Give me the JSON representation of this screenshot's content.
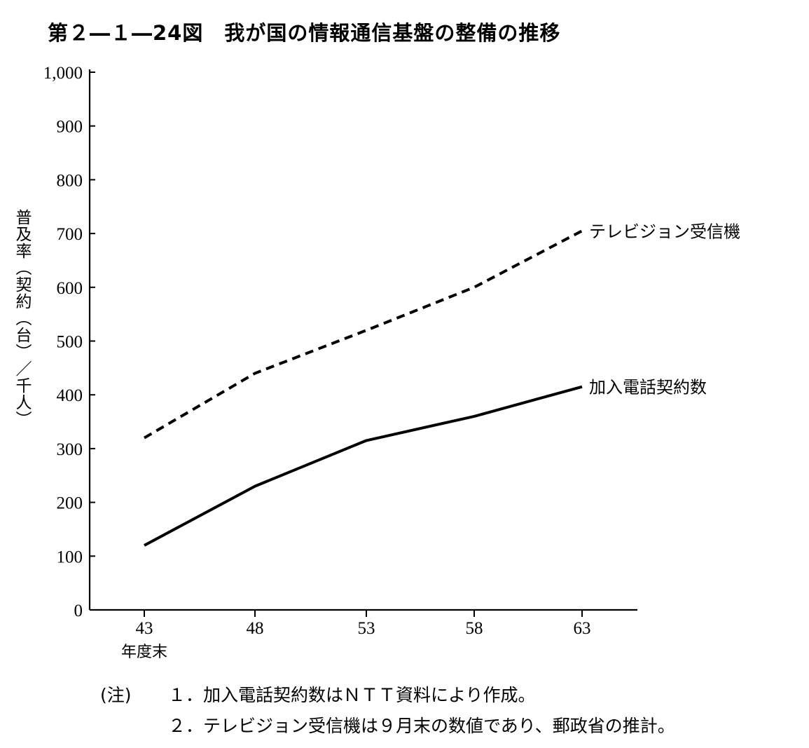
{
  "figure": {
    "title": "第２―１―24図　我が国の情報通信基盤の整備の推移"
  },
  "chart_data": {
    "type": "line",
    "title": "第２―１―24図　我が国の情報通信基盤の整備の推移",
    "ylabel": "普及率（契約（台）／千人）",
    "xlabel": "年度末",
    "categories": [
      "43",
      "48",
      "53",
      "58",
      "63"
    ],
    "yticks": [
      "0",
      "100",
      "200",
      "300",
      "400",
      "500",
      "600",
      "700",
      "800",
      "900",
      "1,000"
    ],
    "ylim": [
      0,
      1000
    ],
    "grid": false,
    "series": [
      {
        "name": "テレビジョン受信機",
        "values": [
          320,
          440,
          520,
          600,
          705
        ],
        "line_style": "dashed",
        "color": "#000000"
      },
      {
        "name": "加入電話契約数",
        "values": [
          120,
          230,
          315,
          360,
          415
        ],
        "line_style": "solid",
        "color": "#000000"
      }
    ]
  },
  "notes": {
    "prefix": "(注)",
    "items": [
      "１．加入電話契約数はＮＴＴ資料により作成。",
      "２．テレビジョン受信機は９月末の数値であり、郵政省の推計。"
    ]
  }
}
